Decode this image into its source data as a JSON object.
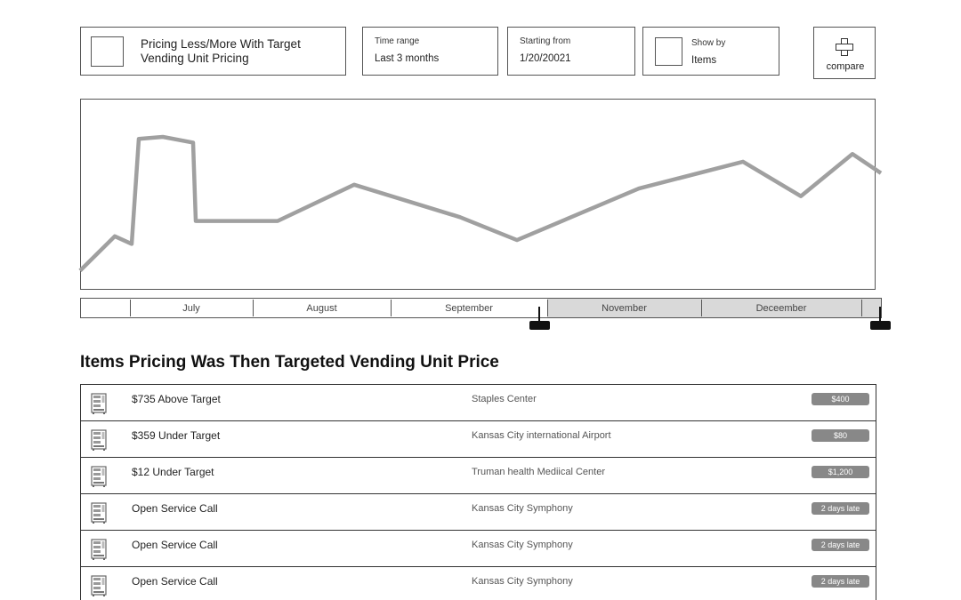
{
  "filters": {
    "title": "Pricing Less/More With Target Vending Unit Pricing",
    "time_range": {
      "label": "Time range",
      "value": "Last 3 months"
    },
    "starting_from": {
      "label": "Starting from",
      "value": "1/20/20021"
    },
    "show_by": {
      "label": "Show by",
      "value": "Items"
    },
    "compare_label": "compare"
  },
  "chart_data": {
    "type": "line",
    "series": [
      {
        "values": [
          10,
          28,
          24,
          79,
          80,
          77,
          36,
          36,
          36,
          55,
          38,
          26,
          53,
          67,
          49,
          71,
          61,
          48,
          66,
          57,
          61
        ]
      }
    ],
    "ylim": [
      0,
      100
    ],
    "line_color": "#a0a0a0"
  },
  "timeline": {
    "months": [
      "July",
      "August",
      "September",
      "November",
      "Deceember"
    ]
  },
  "section_title": "Items Pricing Was Then Targeted Vending Unit Price",
  "items": [
    {
      "title": "$735 Above Target",
      "location": "Staples Center",
      "badge": "$400"
    },
    {
      "title": "$359 Under Target",
      "location": "Kansas City international Airport",
      "badge": "$80"
    },
    {
      "title": "$12 Under Target",
      "location": "Truman health Mediical Center",
      "badge": "$1,200"
    },
    {
      "title": "Open Service Call",
      "location": "Kansas City Symphony",
      "badge": "2 days late"
    },
    {
      "title": "Open Service Call",
      "location": "Kansas City Symphony",
      "badge": "2 days late"
    },
    {
      "title": "Open Service Call",
      "location": "Kansas City Symphony",
      "badge": "2 days late"
    }
  ],
  "colors": {
    "badge": "#888888",
    "timeline_selected": "#d9d9d9"
  }
}
